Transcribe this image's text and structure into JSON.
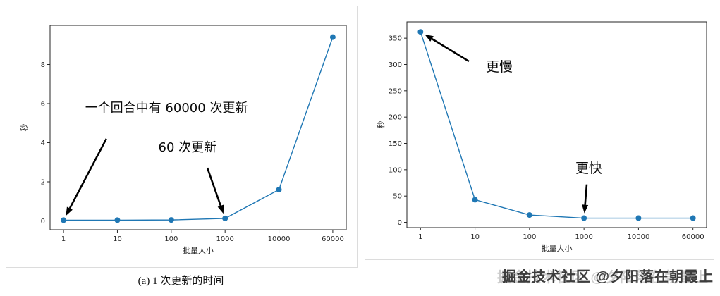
{
  "figure": {
    "caption_left": "(a) 1 次更新的时间",
    "watermark": "掘金技术社区 @夕阳落在朝霞上"
  },
  "chart_data": [
    {
      "type": "line",
      "title": "",
      "xlabel": "批量大小",
      "ylabel": "秒",
      "categories": [
        "1",
        "10",
        "100",
        "1000",
        "10000",
        "60000"
      ],
      "values": [
        0.04,
        0.04,
        0.05,
        0.13,
        1.6,
        9.4
      ],
      "ylim": [
        -0.45,
        10.0
      ],
      "yticks": [
        0,
        2,
        4,
        6,
        8
      ],
      "line_color": "#1f77b4",
      "grid": false,
      "legend": "none",
      "annotations": [
        {
          "text": "一个回合中有 60000 次更新",
          "font_size": 18,
          "text_fx": 0.393,
          "text_fy": 0.424,
          "arrow_start_fx": 0.19,
          "arrow_start_fy": 0.555,
          "point_index": 0
        },
        {
          "text": "60 次更新",
          "font_size": 18,
          "text_fx": 0.464,
          "text_fy": 0.617,
          "arrow_start_fx": 0.531,
          "arrow_start_fy": 0.697,
          "point_index": 3
        }
      ]
    },
    {
      "type": "line",
      "title": "",
      "xlabel": "批量大小",
      "ylabel": "秒",
      "categories": [
        "1",
        "10",
        "100",
        "1000",
        "10000",
        "60000"
      ],
      "values": [
        362,
        43,
        14,
        8,
        8,
        8
      ],
      "ylim": [
        -10,
        381
      ],
      "yticks": [
        0,
        50,
        100,
        150,
        200,
        250,
        300,
        350
      ],
      "line_color": "#1f77b4",
      "grid": false,
      "legend": "none",
      "annotations": [
        {
          "text": "更慢",
          "font_size": 19,
          "text_fx": 0.308,
          "text_fy": 0.24,
          "arrow_start_fx": 0.207,
          "arrow_start_fy": 0.192,
          "point_index": 0
        },
        {
          "text": "更快",
          "font_size": 19,
          "text_fx": 0.607,
          "text_fy": 0.733,
          "arrow_start_fx": 0.6,
          "arrow_start_fy": 0.79,
          "point_index": 3
        }
      ]
    }
  ]
}
